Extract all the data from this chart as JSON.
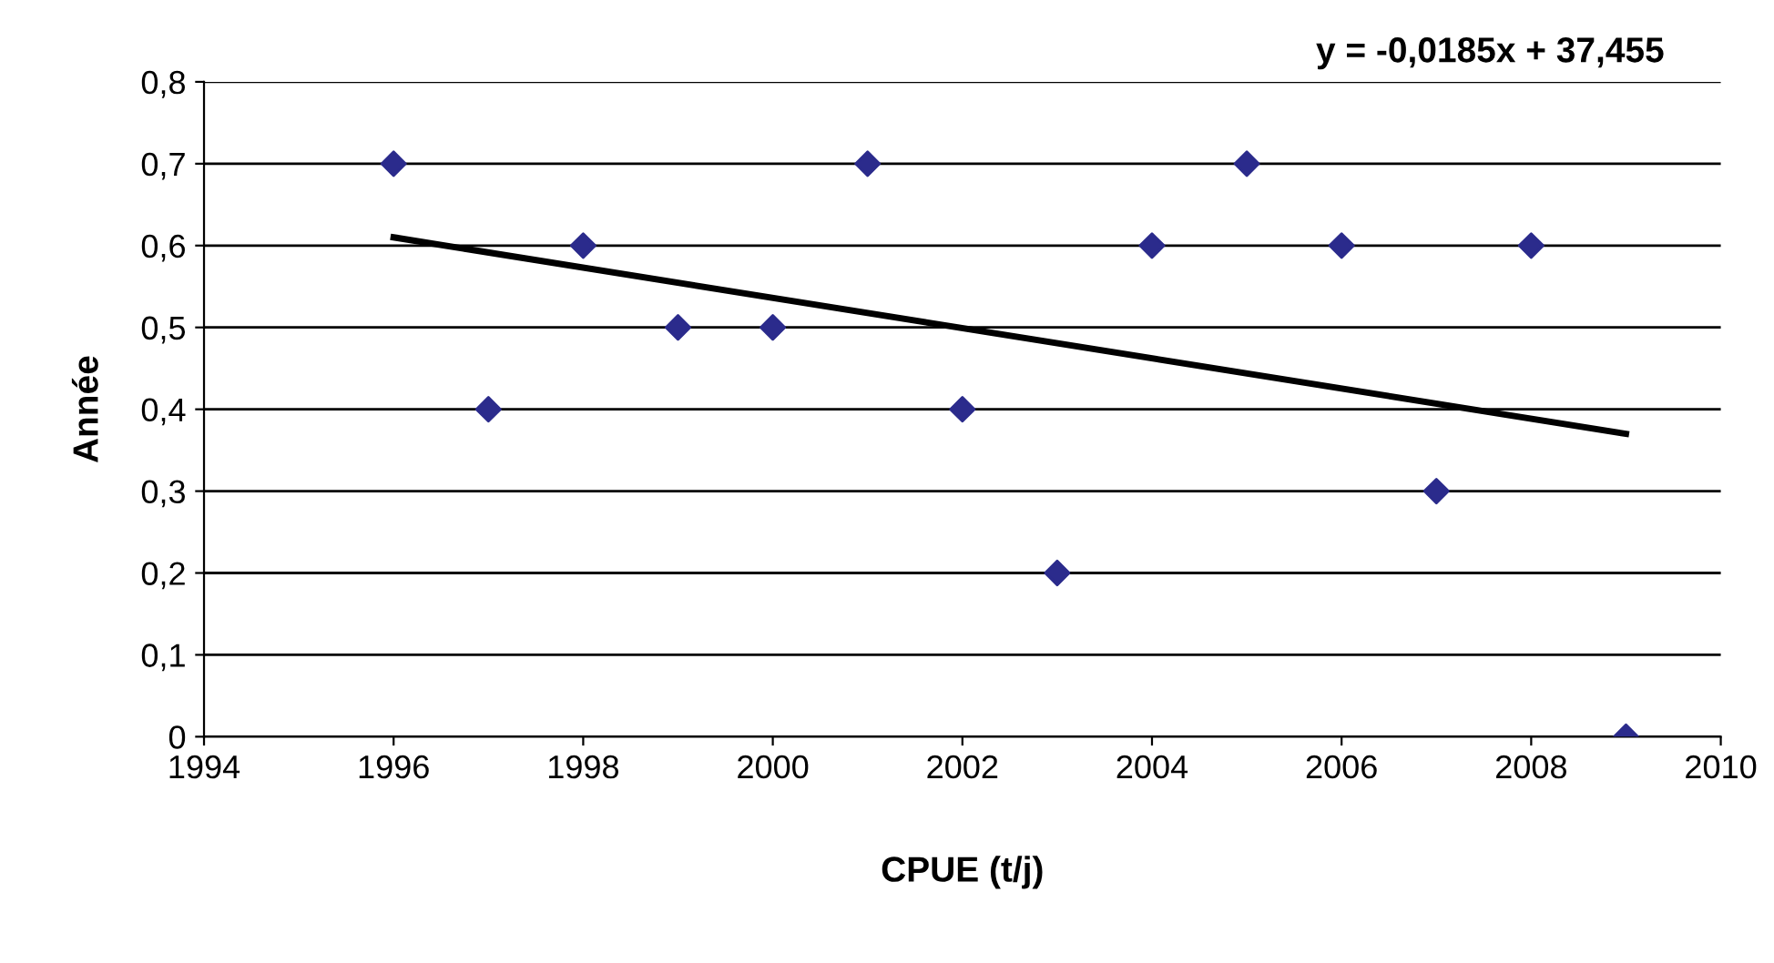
{
  "chart_data": {
    "type": "scatter",
    "xlabel": "CPUE (t/j)",
    "ylabel": "Année",
    "annotations": [
      "y = -0,0185x + 37,455"
    ],
    "x": [
      1996,
      1997,
      1998,
      1999,
      2000,
      2001,
      2002,
      2003,
      2004,
      2005,
      2006,
      2007,
      2008,
      2009
    ],
    "series": [
      {
        "color": "#2b2b8c",
        "marker": "diamond",
        "values": [
          0.7,
          0.4,
          0.6,
          0.5,
          0.5,
          0.7,
          0.4,
          0.2,
          0.6,
          0.7,
          0.6,
          0.3,
          0.6,
          0.0
        ]
      },
      {
        "type": "line",
        "color": "#000000",
        "x": [
          1996,
          2009
        ],
        "values": [
          0.61,
          0.37
        ]
      }
    ],
    "xlim": [
      1994,
      2010
    ],
    "xticks": [
      1994,
      1996,
      1998,
      2000,
      2002,
      2004,
      2006,
      2008,
      2010
    ],
    "ylim": [
      0,
      0.8
    ],
    "yticks": [
      {
        "value": 0,
        "label": "0"
      },
      {
        "value": 0.1,
        "label": "0,1"
      },
      {
        "value": 0.2,
        "label": "0,2"
      },
      {
        "value": 0.3,
        "label": "0,3"
      },
      {
        "value": 0.4,
        "label": "0,4"
      },
      {
        "value": 0.5,
        "label": "0,5"
      },
      {
        "value": 0.6,
        "label": "0,6"
      },
      {
        "value": 0.7,
        "label": "0,7"
      },
      {
        "value": 0.8,
        "label": "0,8"
      }
    ],
    "grid": "y",
    "legend": false
  }
}
